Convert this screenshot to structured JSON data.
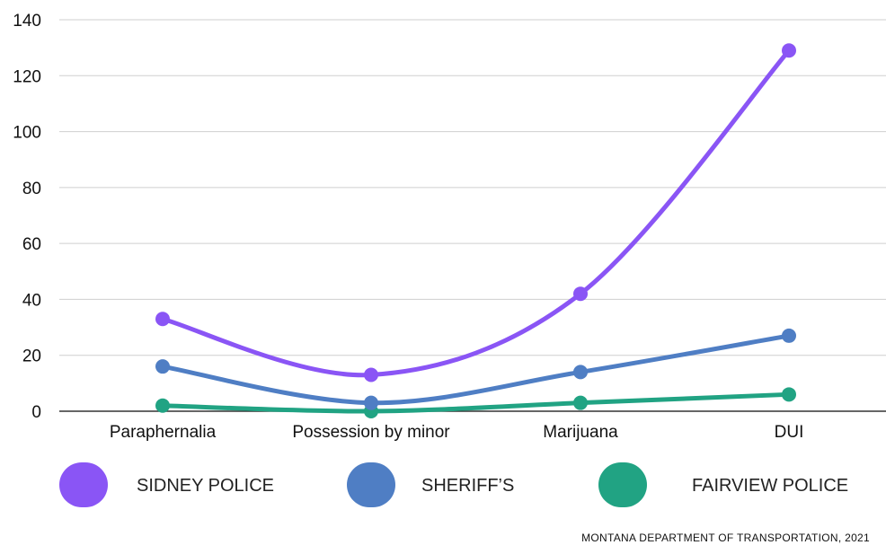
{
  "chart_data": {
    "type": "line",
    "categories": [
      "Paraphernalia",
      "Possession by minor",
      "Marijuana",
      "DUI"
    ],
    "series": [
      {
        "name": "SIDNEY POLICE",
        "values": [
          33,
          13,
          42,
          129
        ],
        "color": "#8A55F5"
      },
      {
        "name": "SHERIFF’S",
        "values": [
          16,
          3,
          14,
          27
        ],
        "color": "#4F7EC4"
      },
      {
        "name": "FAIRVIEW POLICE",
        "values": [
          2,
          0,
          3,
          6
        ],
        "color": "#21A383"
      }
    ],
    "ylim": [
      0,
      140
    ],
    "yticks": [
      0,
      20,
      40,
      60,
      80,
      100,
      120,
      140
    ],
    "grid": true,
    "legend_position": "bottom",
    "smooth_lines": true,
    "source": "MONTANA DEPARTMENT OF TRANSPORTATION, 2021"
  }
}
